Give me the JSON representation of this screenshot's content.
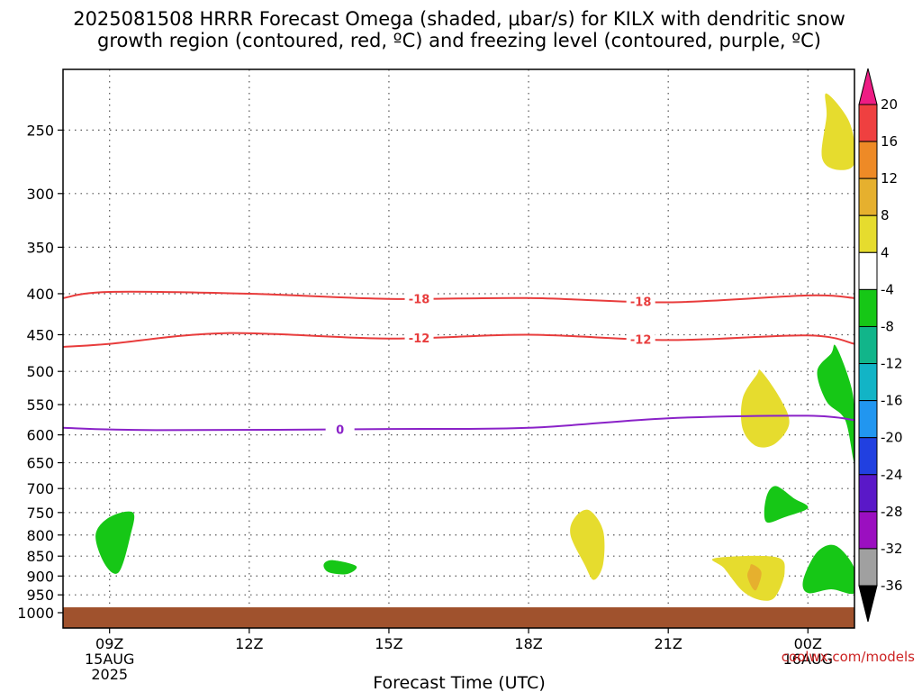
{
  "title": {
    "line1": "2025081508 HRRR Forecast Omega (shaded, μbar/s) for KILX with dendritic snow",
    "line2": "growth region (contoured, red, ºC) and freezing level (contoured, purple, ºC)"
  },
  "credit": "coolwx.com/models",
  "chart_data": {
    "type": "heatmap",
    "xlabel": "Forecast Time (UTC)",
    "ylabel": "",
    "x_range_hours_utc": [
      8,
      25
    ],
    "x_ticks": [
      {
        "hour": 9,
        "label": "09Z",
        "sub1": "15AUG",
        "sub2": "2025"
      },
      {
        "hour": 12,
        "label": "12Z",
        "sub1": "",
        "sub2": ""
      },
      {
        "hour": 15,
        "label": "15Z",
        "sub1": "",
        "sub2": ""
      },
      {
        "hour": 18,
        "label": "18Z",
        "sub1": "",
        "sub2": ""
      },
      {
        "hour": 21,
        "label": "21Z",
        "sub1": "",
        "sub2": ""
      },
      {
        "hour": 24,
        "label": "00Z",
        "sub1": "16AUG",
        "sub2": ""
      }
    ],
    "y_ticks_hpa": [
      250,
      300,
      350,
      400,
      450,
      500,
      550,
      600,
      650,
      700,
      750,
      800,
      850,
      900,
      950,
      1000
    ],
    "y_scale": "log-pressure",
    "colorbar": {
      "ticks": [
        "20",
        "16",
        "12",
        "8",
        "4",
        "-4",
        "-8",
        "-12",
        "-16",
        "-20",
        "-24",
        "-28",
        "-32",
        "-36"
      ],
      "colors": [
        "#ee1c84",
        "#ef4040",
        "#ee8a26",
        "#e6b02e",
        "#e6dc2e",
        "#ffffff",
        "#16c716",
        "#11b58a",
        "#12b4c6",
        "#2196f0",
        "#2140e0",
        "#5a18c8",
        "#9b0fc0",
        "#a0a0a0",
        "#000000"
      ]
    },
    "contours": [
      {
        "name": "dendritic-upper",
        "color": "#e83c3c",
        "labels": [
          "-18",
          "-18"
        ],
        "points": [
          [
            8,
            405
          ],
          [
            9,
            398
          ],
          [
            12,
            400
          ],
          [
            15,
            406
          ],
          [
            18,
            405
          ],
          [
            21,
            410
          ],
          [
            24,
            402
          ],
          [
            25,
            405
          ]
        ]
      },
      {
        "name": "dendritic-lower",
        "color": "#e83c3c",
        "labels": [
          "-12",
          "-12"
        ],
        "points": [
          [
            8,
            466
          ],
          [
            9,
            462
          ],
          [
            11.5,
            448
          ],
          [
            15,
            455
          ],
          [
            18,
            450
          ],
          [
            21,
            457
          ],
          [
            24,
            451
          ],
          [
            25,
            462
          ]
        ]
      },
      {
        "name": "freezing-level",
        "color": "#8a22c8",
        "labels": [
          "0"
        ],
        "points": [
          [
            8,
            588
          ],
          [
            10,
            592
          ],
          [
            15,
            590
          ],
          [
            18,
            588
          ],
          [
            21,
            572
          ],
          [
            24,
            568
          ],
          [
            25,
            575
          ]
        ]
      }
    ],
    "shaded_regions": [
      {
        "color": "#e6dc2e",
        "label": "4-8",
        "points": [
          [
            24.4,
            225
          ],
          [
            24.9,
            245
          ],
          [
            25,
            275
          ],
          [
            24.6,
            280
          ],
          [
            24.3,
            270
          ],
          [
            24.4,
            240
          ]
        ]
      },
      {
        "color": "#e6dc2e",
        "label": "4-8",
        "points": [
          [
            23.0,
            500
          ],
          [
            23.4,
            540
          ],
          [
            23.6,
            580
          ],
          [
            23.3,
            615
          ],
          [
            22.9,
            620
          ],
          [
            22.6,
            590
          ],
          [
            22.6,
            540
          ],
          [
            22.9,
            505
          ]
        ]
      },
      {
        "color": "#e6dc2e",
        "label": "4-8",
        "points": [
          [
            19.3,
            745
          ],
          [
            19.6,
            790
          ],
          [
            19.6,
            870
          ],
          [
            19.4,
            910
          ],
          [
            19.2,
            870
          ],
          [
            18.9,
            800
          ],
          [
            19.0,
            760
          ]
        ]
      },
      {
        "color": "#e6dc2e",
        "label": "4-8",
        "points": [
          [
            22.0,
            855
          ],
          [
            23.3,
            852
          ],
          [
            23.5,
            890
          ],
          [
            23.3,
            955
          ],
          [
            23.0,
            965
          ],
          [
            22.6,
            940
          ],
          [
            22.2,
            880
          ]
        ]
      },
      {
        "color": "#e6b02e",
        "label": "8-12",
        "points": [
          [
            22.8,
            870
          ],
          [
            23.0,
            890
          ],
          [
            22.9,
            935
          ],
          [
            22.8,
            930
          ],
          [
            22.7,
            900
          ],
          [
            22.75,
            880
          ]
        ]
      },
      {
        "color": "#16c716",
        "label": "-4 to -8",
        "points": [
          [
            9.5,
            750
          ],
          [
            9.45,
            800
          ],
          [
            9.2,
            890
          ],
          [
            8.9,
            870
          ],
          [
            8.7,
            800
          ],
          [
            9.0,
            760
          ]
        ]
      },
      {
        "color": "#16c716",
        "label": "-4 to -8",
        "points": [
          [
            13.8,
            860
          ],
          [
            14.3,
            875
          ],
          [
            14.1,
            895
          ],
          [
            13.7,
            890
          ],
          [
            13.6,
            870
          ]
        ]
      },
      {
        "color": "#16c716",
        "label": "-4 to -8",
        "points": [
          [
            23.3,
            695
          ],
          [
            23.7,
            720
          ],
          [
            24.0,
            740
          ],
          [
            23.5,
            760
          ],
          [
            23.1,
            770
          ],
          [
            23.1,
            720
          ]
        ]
      },
      {
        "color": "#16c716",
        "label": "-4 to -8",
        "points": [
          [
            24.6,
            465
          ],
          [
            24.9,
            515
          ],
          [
            25,
            560
          ],
          [
            25,
            650
          ],
          [
            24.8,
            575
          ],
          [
            24.4,
            545
          ],
          [
            24.2,
            500
          ],
          [
            24.5,
            475
          ]
        ]
      },
      {
        "color": "#16c716",
        "label": "-4 to -8",
        "points": [
          [
            24.6,
            825
          ],
          [
            25.0,
            880
          ],
          [
            25.0,
            945
          ],
          [
            24.5,
            935
          ],
          [
            24.0,
            945
          ],
          [
            23.9,
            910
          ],
          [
            24.2,
            840
          ]
        ]
      }
    ]
  }
}
